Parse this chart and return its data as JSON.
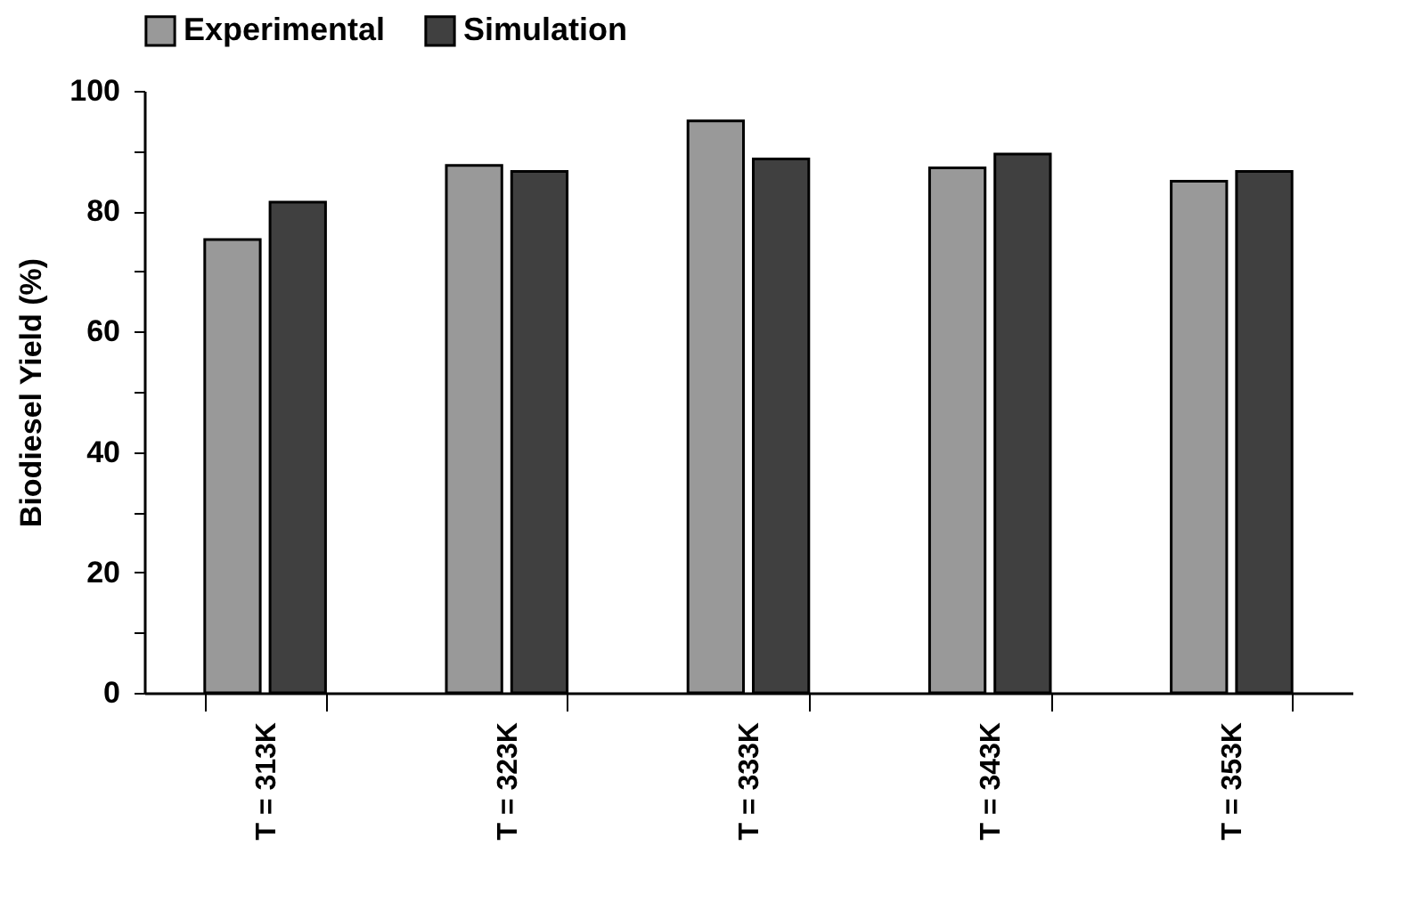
{
  "chart_data": {
    "type": "bar",
    "ylabel": "Biodiesel Yield (%)",
    "categories": [
      "T = 313K",
      "T = 323K",
      "T = 333K",
      "T = 343K",
      "T = 353K"
    ],
    "series": [
      {
        "name": "Experimental",
        "color": "#999999",
        "values": [
          75.3,
          87.6,
          95.0,
          87.2,
          85.0
        ]
      },
      {
        "name": "Simulation",
        "color": "#404040",
        "values": [
          81.5,
          86.6,
          88.7,
          89.5,
          86.6
        ]
      }
    ],
    "ylim": [
      0,
      100
    ],
    "yticks": [
      0,
      {
        "value": 10,
        "label": null
      },
      20,
      {
        "value": 30,
        "label": null
      },
      40,
      {
        "value": 50,
        "label": null
      },
      60,
      {
        "value": 70,
        "label": null
      },
      80,
      {
        "value": 90,
        "label": null
      },
      100
    ],
    "legend": "top"
  }
}
